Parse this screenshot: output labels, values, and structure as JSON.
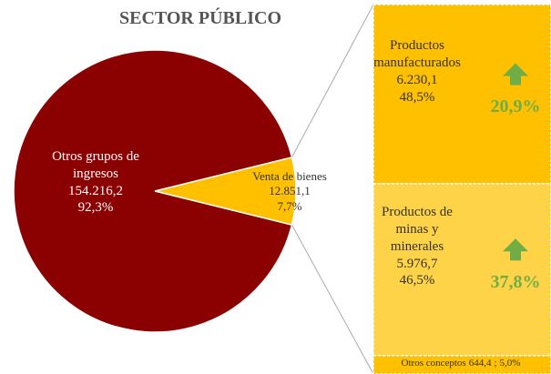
{
  "chart_data": {
    "type": "pie",
    "title": "SECTOR PÚBLICO",
    "categories": [
      "Otros grupos de ingresos",
      "Venta de bienes"
    ],
    "values": [
      154216.2,
      12851.1
    ],
    "value_labels": [
      "154.216,2",
      "12.851,1"
    ],
    "percents": [
      92.3,
      7.7
    ],
    "percent_labels": [
      "92,3%",
      "7,7%"
    ],
    "colors": [
      "#8b0000",
      "#ffc000"
    ],
    "breakdown": [
      {
        "name": "Productos manufacturados",
        "value": 6230.1,
        "value_label": "6.230,1",
        "percent": 48.5,
        "percent_label": "48,5%",
        "change": 20.9,
        "change_label": "20,9%",
        "color": "#ffc000"
      },
      {
        "name": "Productos de minas y minerales",
        "value": 5976.7,
        "value_label": "5.976,7",
        "percent": 46.5,
        "percent_label": "46,5%",
        "change": 37.8,
        "change_label": "37,8%",
        "color": "#ffd347"
      },
      {
        "name": "Otros conceptos",
        "value": 644.4,
        "value_label": "644,4",
        "separator": ";",
        "percent": 5.0,
        "percent_label": "5,0%",
        "color": "#ffc000"
      }
    ],
    "change_color": "#70ad47"
  }
}
